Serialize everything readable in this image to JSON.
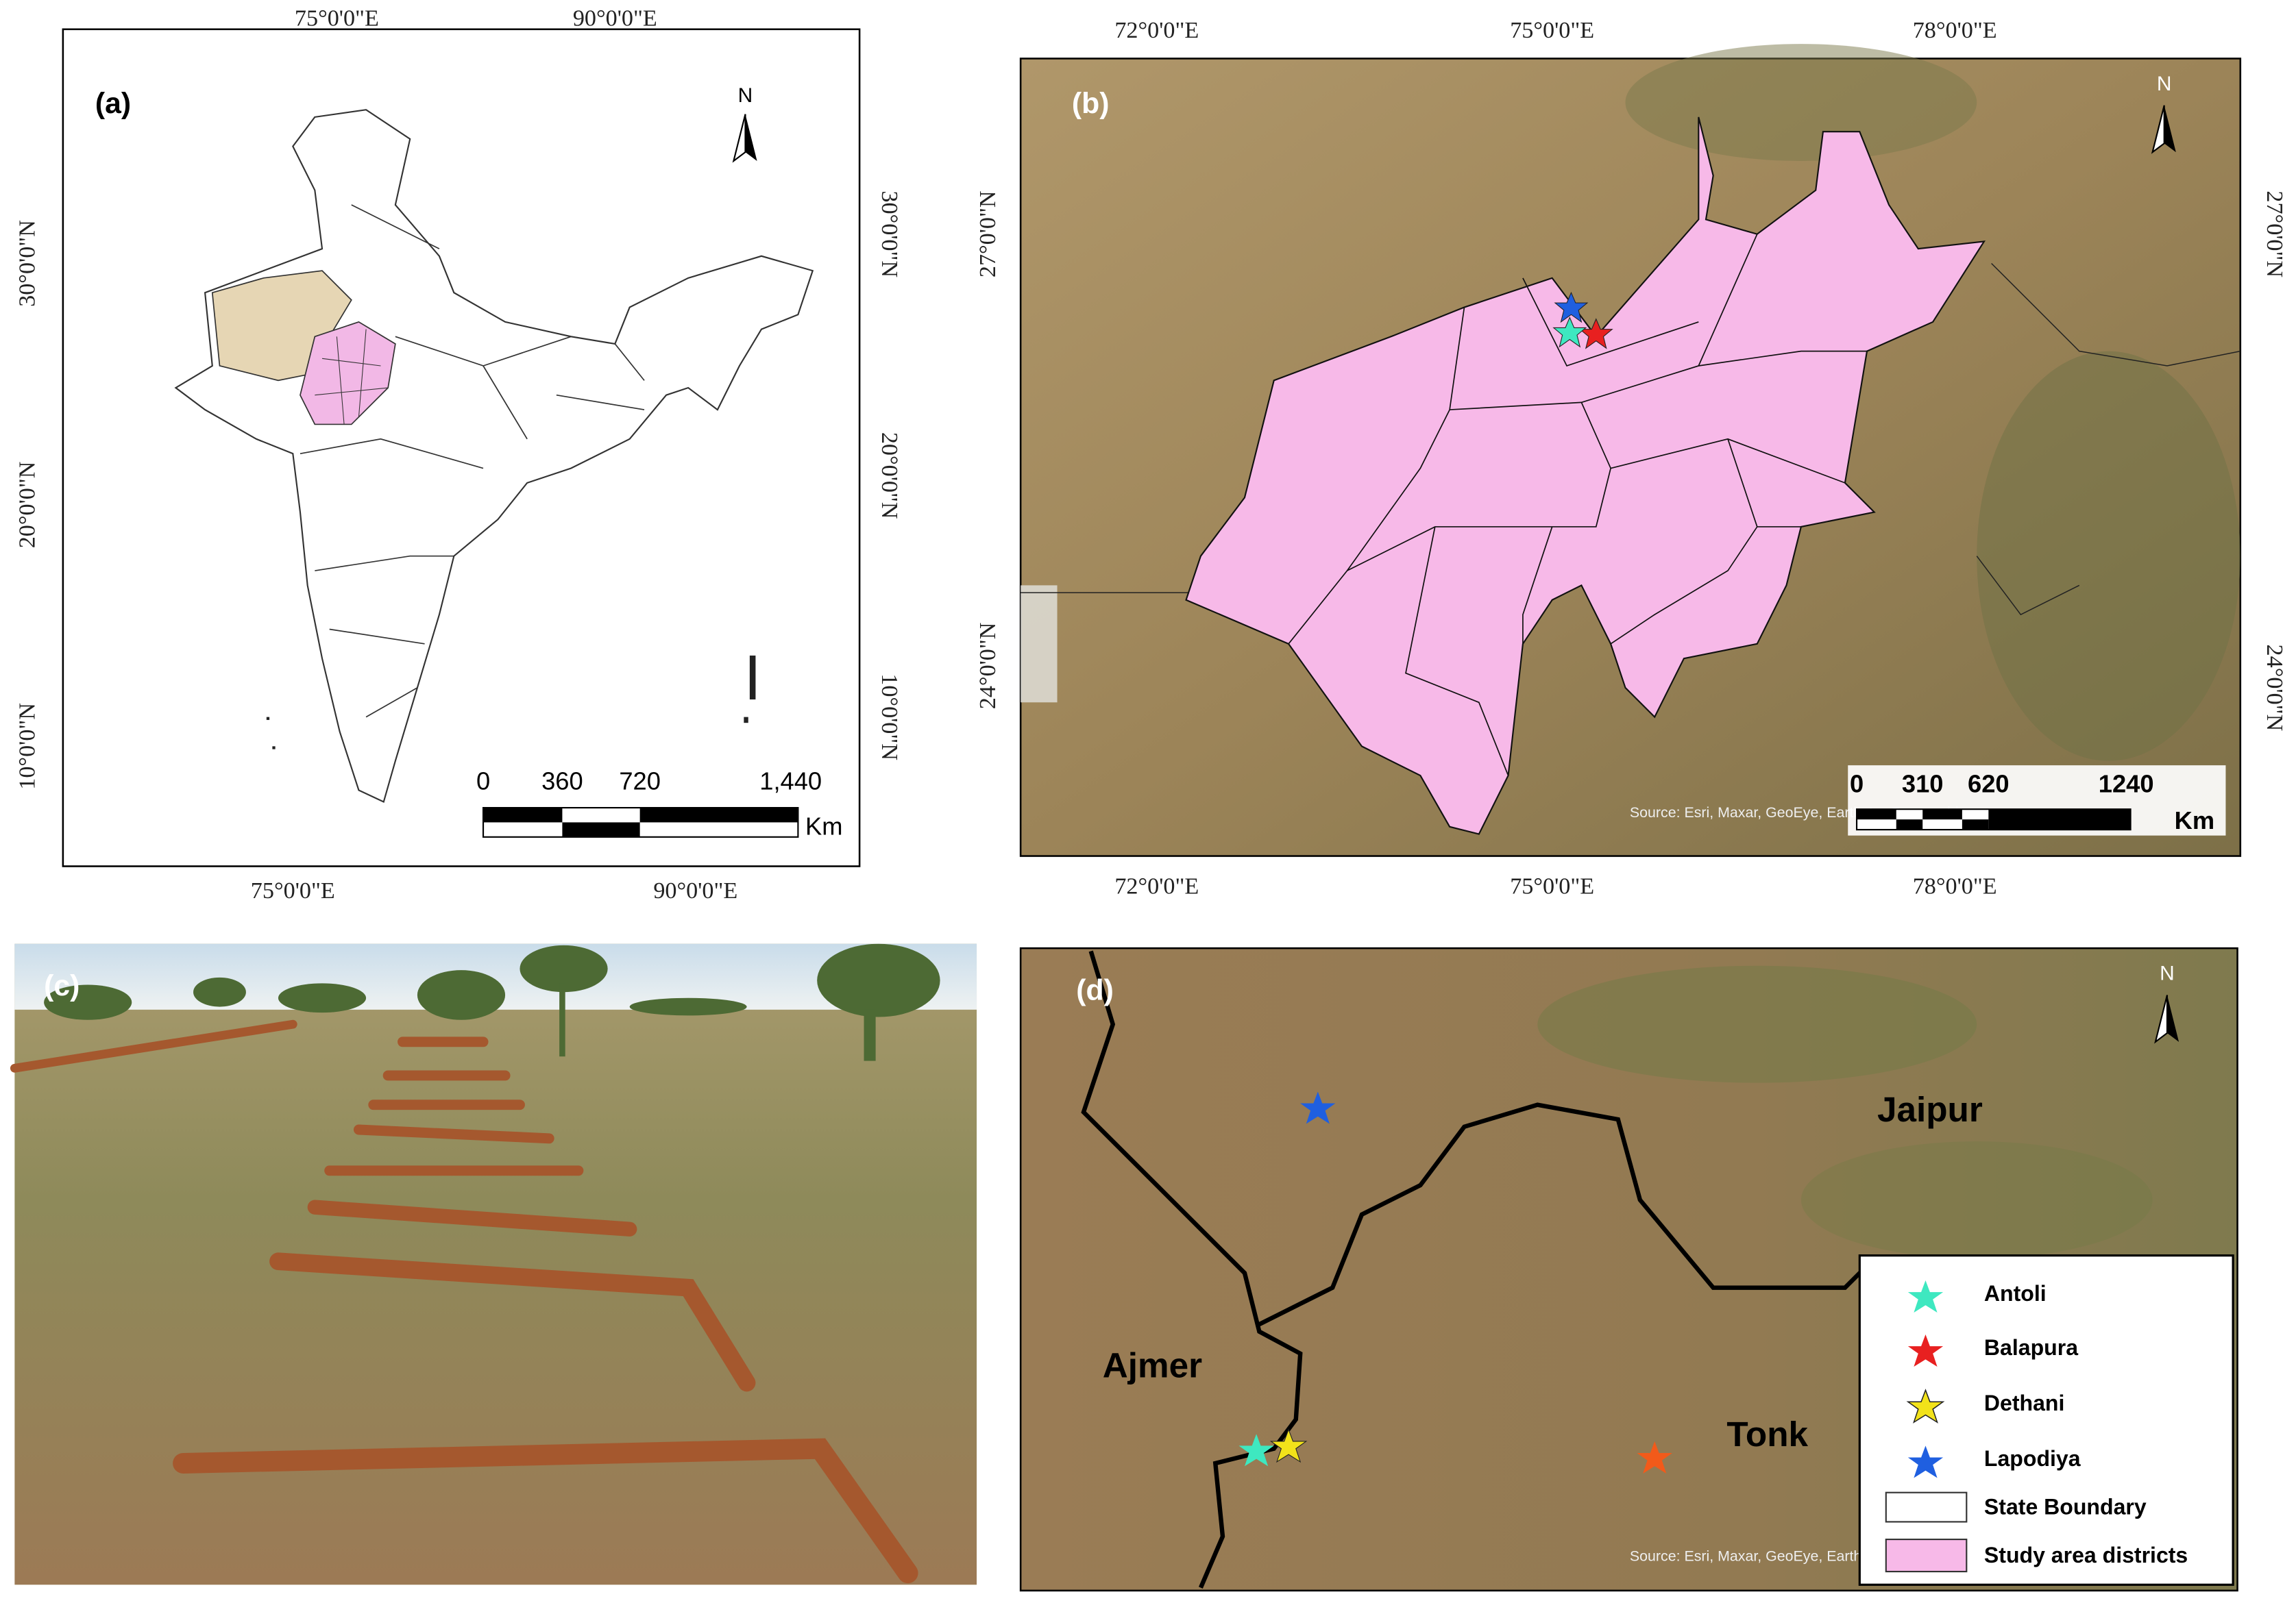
{
  "panel_a": {
    "label": "(a)",
    "north": "N",
    "lon_labels": [
      "75°0'0\"E",
      "90°0'0\"E"
    ],
    "lat_labels": [
      "30°0'0\"N",
      "20°0'0\"N",
      "10°0'0\"N"
    ],
    "scale_labels": [
      "0",
      "360",
      "720",
      "1,440"
    ],
    "scale_unit": "Km"
  },
  "panel_b": {
    "label": "(b)",
    "north": "N",
    "lon_labels": [
      "72°0'0\"E",
      "75°0'0\"E",
      "78°0'0\"E"
    ],
    "lat_labels": [
      "27°0'0\"N",
      "24°0'0\"N"
    ],
    "scale_labels": [
      "0",
      "310",
      "620",
      "1240"
    ],
    "scale_unit": "Km",
    "source": "Source: Esri, Maxar, GeoEye, Earthstar Geographics"
  },
  "panel_c": {
    "label": "(c)"
  },
  "panel_d": {
    "label": "(d)",
    "north": "N",
    "places": [
      "Jaipur",
      "Ajmer",
      "Tonk"
    ],
    "legend": [
      "Antoli",
      "Balapura",
      "Dethani",
      "Lapodiya",
      "State Boundary",
      "Study area districts"
    ],
    "source": "Source: Esri, Maxar, GeoEye, Earthstar Geographics"
  }
}
